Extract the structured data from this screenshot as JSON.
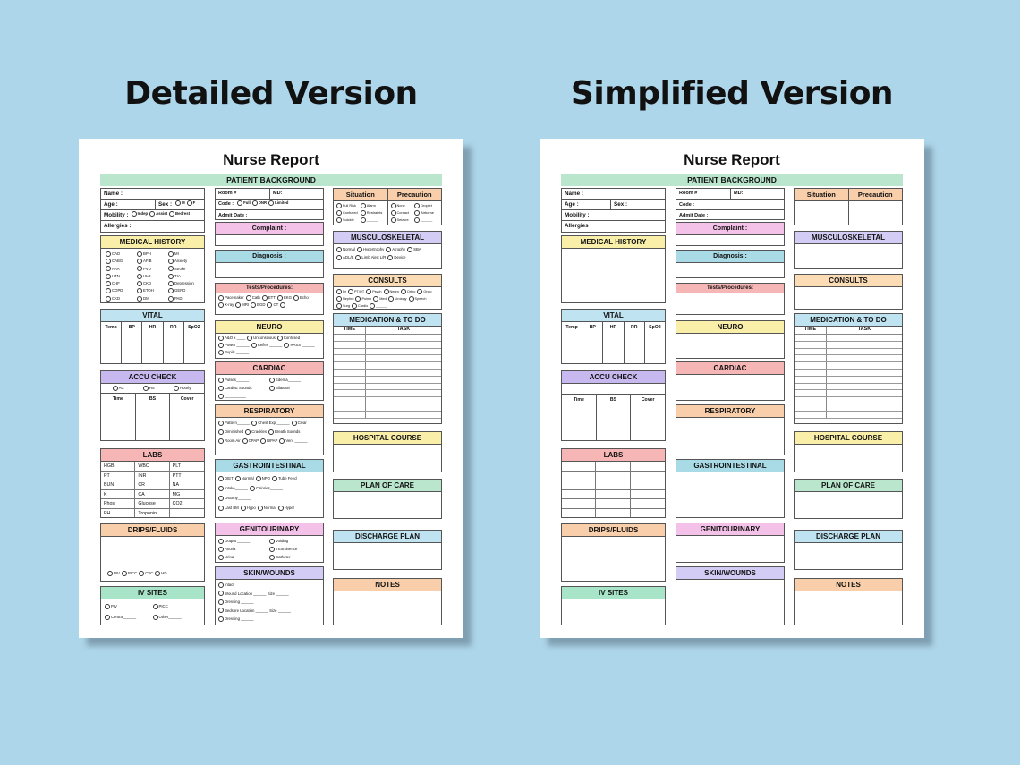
{
  "left_title": "Detailed Version",
  "right_title": "Simplified Version",
  "sheet": {
    "title": "Nurse Report",
    "banner": "PATIENT BACKGROUND",
    "fields": {
      "name": "Name :",
      "age": "Age :",
      "sex": "Sex :",
      "sex_m": "M",
      "sex_f": "F",
      "mobility": "Mobility :",
      "mobility_opts": [
        "Indep",
        "Assist",
        "Bedrest"
      ],
      "allergies": "Allergies :",
      "room": "Room #",
      "md": "MD:",
      "code": "Code :",
      "code_opts": [
        "Full",
        "DNR",
        "Limited"
      ],
      "admit": "Admit Date :"
    },
    "sections": {
      "medical_history": "MEDICAL HISTORY",
      "vital": "VITAL",
      "accu_check": "ACCU CHECK",
      "labs": "LABS",
      "drips": "DRIPS/FLUIDS",
      "iv_sites": "IV SITES",
      "complaint": "Complaint :",
      "diagnosis": "Diagnosis  :",
      "tests": "Tests/Procedures:",
      "neuro": "NEURO",
      "cardiac": "CARDIAC",
      "respiratory": "RESPIRATORY",
      "gi": "GASTROINTESTINAL",
      "gu": "GENITOURINARY",
      "skin": "SKIN/WOUNDS",
      "situation": "Situation",
      "precaution": "Precaution",
      "msk": "MUSCULOSKELETAL",
      "consults": "CONSULTS",
      "medication": "MEDICATION & TO DO",
      "hospital_course": "HOSPITAL COURSE",
      "plan_of_care": "PLAN OF CARE",
      "discharge": "DISCHARGE PLAN",
      "notes": "NOTES"
    },
    "medical_history_items": [
      "CAD",
      "BPH",
      "MI",
      "CABG",
      "AFIB",
      "Anxiety",
      "AAA",
      "PVD",
      "Stroke",
      "HTN",
      "HLD",
      "TIA",
      "CHF",
      "CKD",
      "Depression",
      "COPD",
      "ETOH",
      "GERD",
      "CKD",
      "DM",
      "PAD"
    ],
    "vital_cols": [
      "Temp",
      "BP",
      "HR",
      "RR",
      "SpO2"
    ],
    "accu_opts": [
      "AC",
      "HS",
      "Hourly"
    ],
    "accu_cols": [
      "Time",
      "BS",
      "Cover"
    ],
    "labs": [
      [
        "HGB",
        "WBC",
        "PLT"
      ],
      [
        "PT",
        "INR",
        "PTT"
      ],
      [
        "BUN",
        "CR",
        "NA"
      ],
      [
        "K",
        "CA",
        "MG"
      ],
      [
        "Phos",
        "Glucose",
        "CO2"
      ],
      [
        "PH",
        "Troponin",
        ""
      ]
    ],
    "drips_opts": [
      "PIV",
      "PICC",
      "CVC",
      "HD"
    ],
    "iv_opts": [
      "PIV ______",
      "PICC ______",
      "Central______",
      "Other______"
    ],
    "tests_opts": [
      "Pacemaker",
      "Cath",
      "ETT",
      "EKG",
      "Echo",
      "X-ray",
      "MRI",
      "EGD",
      "CT",
      ""
    ],
    "neuro_opts": [
      "A&O x ____",
      "Unconscious",
      "Confused",
      "Power ______",
      "Reflex ______",
      "RASS ______",
      "Pupils ______"
    ],
    "cardiac_opts": [
      "Pulses______",
      "Edema______",
      "Cardiac Sounds",
      "Bilateral",
      "__________"
    ],
    "resp_opts": [
      "Pattern______",
      "Chest Exp ______",
      "Clear",
      "Diminished",
      "Crackles",
      "Breath Sounds",
      "Room Air",
      "CPAP",
      "BIPAP",
      "Vent ______"
    ],
    "gi_rows": [
      [
        "DIET",
        "Normal",
        "NPO",
        "Tube Feed"
      ],
      [
        "Intake______",
        "Calories______"
      ],
      [
        "Ostomy______"
      ],
      [
        "Last BM",
        "Hypo",
        "Normal",
        "Hyper"
      ]
    ],
    "gu_opts": [
      "Output ______",
      "Voiding",
      "Anuria",
      "Incontinence",
      "Urinal",
      "Catheter",
      "Bedside Comm",
      "Bedpan",
      "______"
    ],
    "skin_rows": [
      "Intact",
      "Wound   Location ______  Size ______",
      "Dressing ______",
      "Bedsore   Location ______  Size ______",
      "Dressing ______"
    ],
    "situation_opts": [
      "Full Risk",
      "Alarm",
      "Confused",
      "Restraints",
      "Suicide",
      "______"
    ],
    "precaution_opts": [
      "None",
      "Droplet",
      "Contact",
      "Airborne",
      "Seizure",
      "______"
    ],
    "msk_opts": [
      "Normal",
      "Hypertrophy",
      "Atrophy",
      "SBA",
      "ADL/B",
      "Limb Alert L/R",
      "Device ______"
    ],
    "consult_opts": [
      "Dr",
      "PT/OT",
      "Psych",
      "Neuro",
      "Ortho",
      "Onco",
      "Nephro",
      "Pulmo",
      "Medi",
      "Urology",
      "Speech",
      "Surg",
      "Cardio",
      "______"
    ],
    "med_cols": [
      "TIME",
      "TASK"
    ]
  }
}
